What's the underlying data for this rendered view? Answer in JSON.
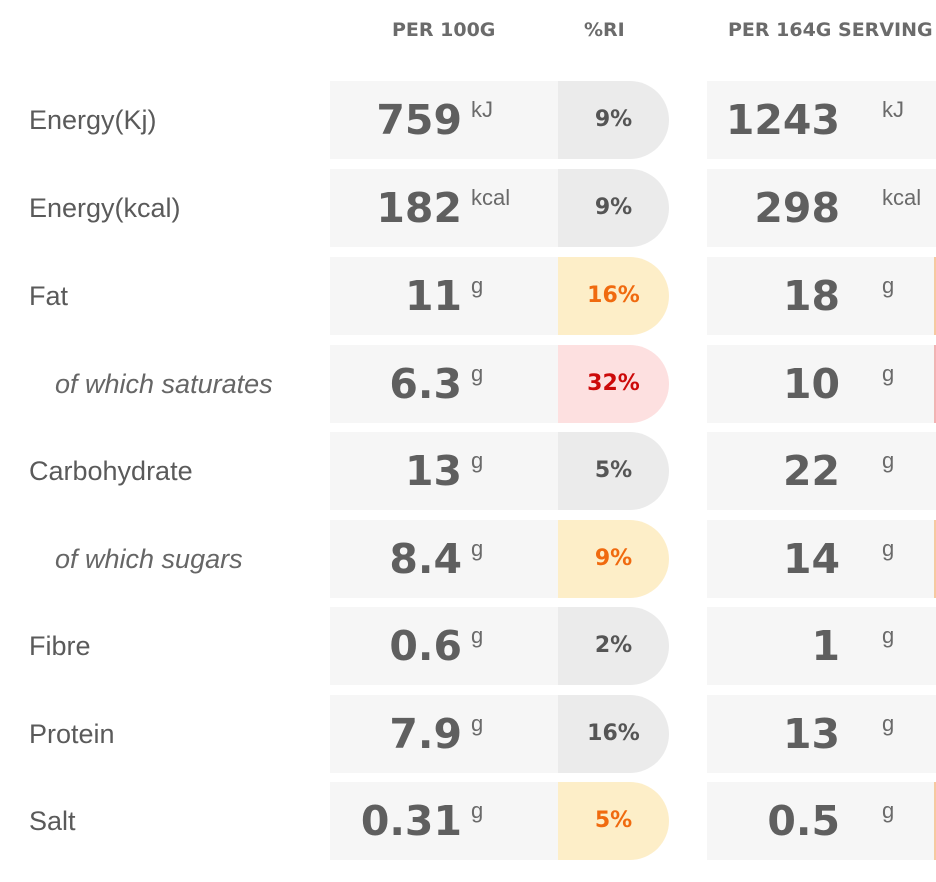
{
  "headers": {
    "per_100g": "PER 100G",
    "ri": "%RI",
    "per_serving": "PER 164G SERVING"
  },
  "rows": [
    {
      "label": "Energy(Kj)",
      "per100": "759",
      "unit": "kJ",
      "ri": "9%",
      "ri_level": "grey",
      "serving": "1243",
      "serving_unit": "kJ"
    },
    {
      "label": "Energy(kcal)",
      "per100": "182",
      "unit": "kcal",
      "ri": "9%",
      "ri_level": "grey",
      "serving": "298",
      "serving_unit": "kcal"
    },
    {
      "label": "Fat",
      "per100": "11",
      "unit": "g",
      "ri": "16%",
      "ri_level": "amber",
      "serving": "18",
      "serving_unit": "g"
    },
    {
      "label": "of which saturates",
      "per100": "6.3",
      "unit": "g",
      "ri": "32%",
      "ri_level": "red",
      "serving": "10",
      "serving_unit": "g"
    },
    {
      "label": "Carbohydrate",
      "per100": "13",
      "unit": "g",
      "ri": "5%",
      "ri_level": "grey",
      "serving": "22",
      "serving_unit": "g"
    },
    {
      "label": "of which sugars",
      "per100": "8.4",
      "unit": "g",
      "ri": "9%",
      "ri_level": "amber",
      "serving": "14",
      "serving_unit": "g"
    },
    {
      "label": "Fibre",
      "per100": "0.6",
      "unit": "g",
      "ri": "2%",
      "ri_level": "grey",
      "serving": "1",
      "serving_unit": "g"
    },
    {
      "label": "Protein",
      "per100": "7.9",
      "unit": "g",
      "ri": "16%",
      "ri_level": "grey",
      "serving": "13",
      "serving_unit": "g"
    },
    {
      "label": "Salt",
      "per100": "0.31",
      "unit": "g",
      "ri": "5%",
      "ri_level": "amber",
      "serving": "0.5",
      "serving_unit": "g"
    }
  ],
  "colors": {
    "grey": "#ebebeb",
    "amber": "#fdeec8",
    "amber_text": "#f06a0f",
    "red": "#fde0e0",
    "red_text": "#cc0a0a"
  }
}
